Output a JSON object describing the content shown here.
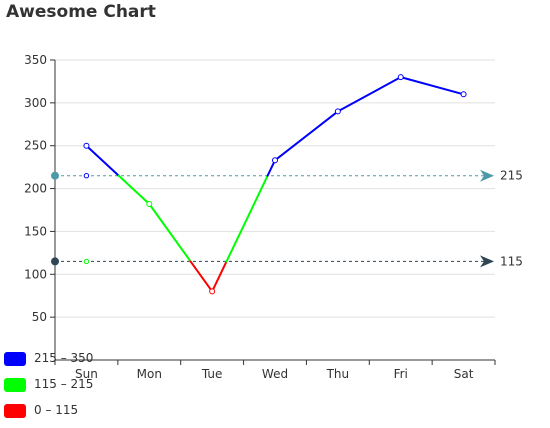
{
  "chart_data": {
    "type": "line",
    "title": "Awesome Chart",
    "categories": [
      "Sun",
      "Mon",
      "Tue",
      "Wed",
      "Thu",
      "Fri",
      "Sat"
    ],
    "values": [
      250,
      182,
      80,
      233,
      290,
      330,
      310
    ],
    "ylim": [
      0,
      350
    ],
    "yticks": [
      50,
      100,
      150,
      200,
      250,
      300,
      350
    ],
    "grid": true,
    "visual_map": [
      {
        "label": "215 – 350",
        "min": 215,
        "max": 350,
        "color": "#0000ff"
      },
      {
        "label": "115 – 215",
        "min": 115,
        "max": 215,
        "color": "#00ff00"
      },
      {
        "label": "0 – 115",
        "min": 0,
        "max": 115,
        "color": "#ff0000"
      }
    ],
    "mark_lines": [
      {
        "value": 215,
        "label": "215",
        "color": "#4c9aa8"
      },
      {
        "value": 115,
        "label": "115",
        "color": "#2f4554"
      }
    ]
  }
}
